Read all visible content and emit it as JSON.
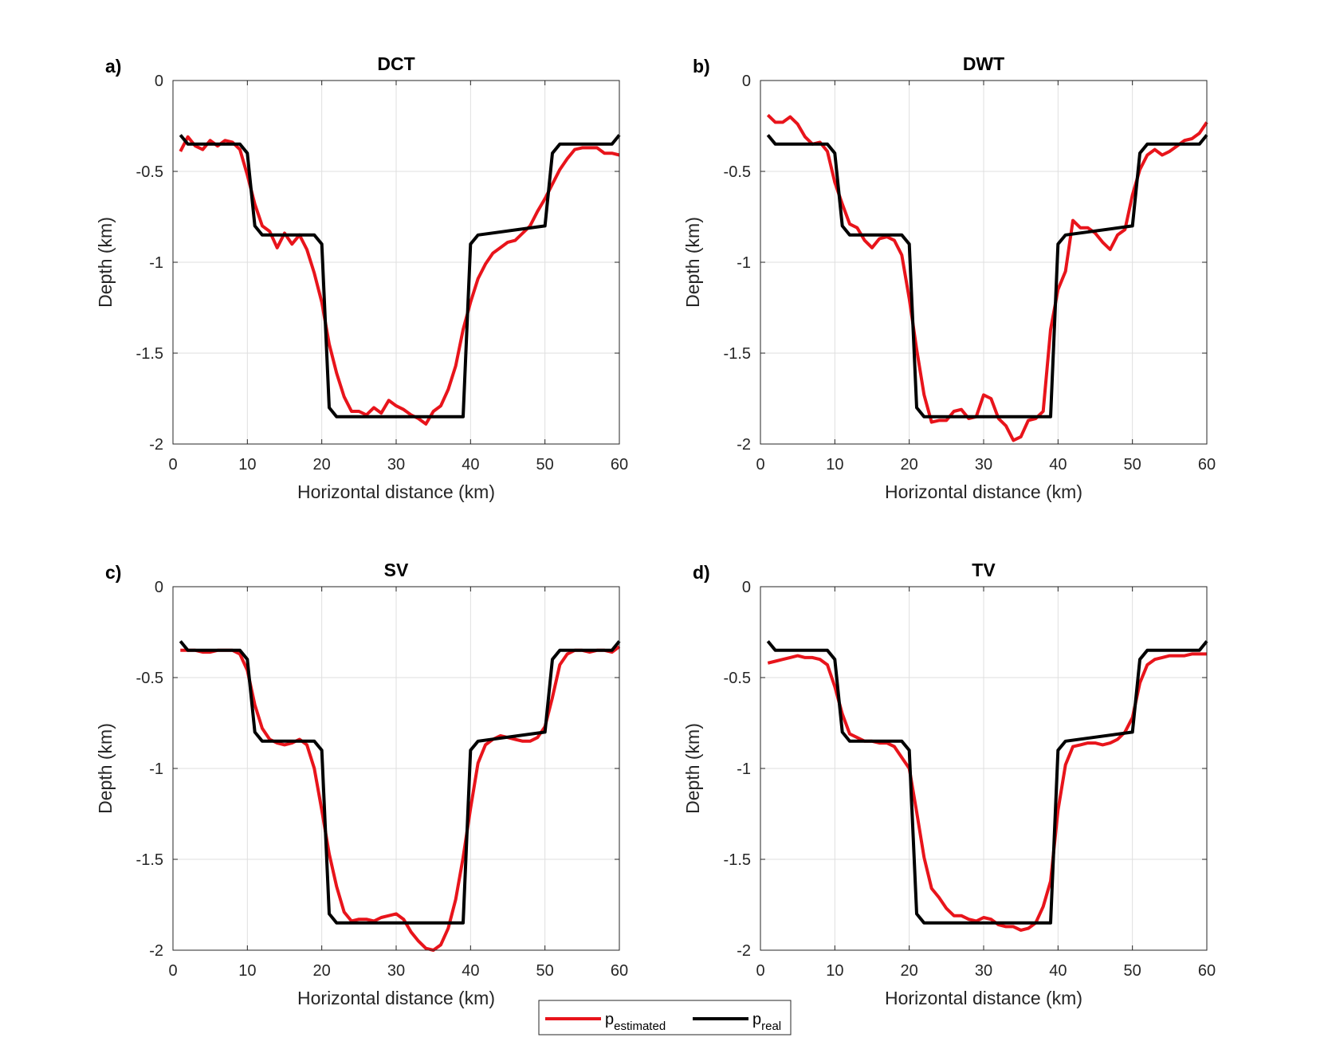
{
  "chart_data": [
    {
      "type": "line",
      "label": "a)",
      "title": "DCT",
      "xlabel": "Horizontal distance (km)",
      "ylabel": "Depth (km)",
      "xlim": [
        0,
        60
      ],
      "ylim": [
        -2,
        0
      ],
      "xticks": [
        0,
        10,
        20,
        30,
        40,
        50,
        60
      ],
      "yticks": [
        0,
        -0.5,
        -1,
        -1.5,
        -2
      ],
      "grid": true,
      "series": [
        {
          "name": "p_estimated",
          "color": "#e8141b",
          "x": [
            1,
            2,
            3,
            4,
            5,
            6,
            7,
            8,
            9,
            10,
            11,
            12,
            13,
            14,
            15,
            16,
            17,
            18,
            19,
            20,
            21,
            22,
            23,
            24,
            25,
            26,
            27,
            28,
            29,
            30,
            31,
            32,
            33,
            34,
            35,
            36,
            37,
            38,
            39,
            40,
            41,
            42,
            43,
            44,
            45,
            46,
            47,
            48,
            49,
            50,
            51,
            52,
            53,
            54,
            55,
            56,
            57,
            58,
            59,
            60
          ],
          "y": [
            -0.39,
            -0.31,
            -0.36,
            -0.38,
            -0.33,
            -0.36,
            -0.33,
            -0.34,
            -0.38,
            -0.52,
            -0.68,
            -0.8,
            -0.83,
            -0.92,
            -0.84,
            -0.9,
            -0.85,
            -0.93,
            -1.06,
            -1.22,
            -1.45,
            -1.61,
            -1.74,
            -1.82,
            -1.82,
            -1.84,
            -1.8,
            -1.83,
            -1.76,
            -1.79,
            -1.81,
            -1.84,
            -1.86,
            -1.89,
            -1.82,
            -1.79,
            -1.7,
            -1.57,
            -1.37,
            -1.22,
            -1.09,
            -1.01,
            -0.95,
            -0.92,
            -0.89,
            -0.88,
            -0.84,
            -0.8,
            -0.72,
            -0.65,
            -0.57,
            -0.49,
            -0.43,
            -0.38,
            -0.37,
            -0.37,
            -0.37,
            -0.4,
            -0.4,
            -0.41
          ]
        },
        {
          "name": "p_real",
          "color": "#000000",
          "x": [
            1,
            2,
            9,
            10,
            11,
            12,
            19,
            20,
            21,
            22,
            39,
            40,
            41,
            50,
            51,
            52,
            59,
            60
          ],
          "y": [
            -0.3,
            -0.35,
            -0.35,
            -0.4,
            -0.8,
            -0.85,
            -0.85,
            -0.9,
            -1.8,
            -1.85,
            -1.85,
            -0.9,
            -0.85,
            -0.8,
            -0.4,
            -0.35,
            -0.35,
            -0.3
          ]
        }
      ]
    },
    {
      "type": "line",
      "label": "b)",
      "title": "DWT",
      "xlabel": "Horizontal distance (km)",
      "ylabel": "Depth (km)",
      "xlim": [
        0,
        60
      ],
      "ylim": [
        -2,
        0
      ],
      "xticks": [
        0,
        10,
        20,
        30,
        40,
        50,
        60
      ],
      "yticks": [
        0,
        -0.5,
        -1,
        -1.5,
        -2
      ],
      "grid": true,
      "series": [
        {
          "name": "p_estimated",
          "color": "#e8141b",
          "x": [
            1,
            2,
            3,
            4,
            5,
            6,
            7,
            8,
            9,
            10,
            11,
            12,
            13,
            14,
            15,
            16,
            17,
            18,
            19,
            20,
            21,
            22,
            23,
            24,
            25,
            26,
            27,
            28,
            29,
            30,
            31,
            32,
            33,
            34,
            35,
            36,
            37,
            38,
            39,
            40,
            41,
            42,
            43,
            44,
            45,
            46,
            47,
            48,
            49,
            50,
            51,
            52,
            53,
            54,
            55,
            56,
            57,
            58,
            59,
            60
          ],
          "y": [
            -0.19,
            -0.23,
            -0.23,
            -0.2,
            -0.24,
            -0.31,
            -0.35,
            -0.34,
            -0.39,
            -0.56,
            -0.68,
            -0.79,
            -0.81,
            -0.88,
            -0.92,
            -0.87,
            -0.86,
            -0.88,
            -0.96,
            -1.2,
            -1.48,
            -1.73,
            -1.88,
            -1.87,
            -1.87,
            -1.82,
            -1.81,
            -1.86,
            -1.85,
            -1.73,
            -1.75,
            -1.86,
            -1.9,
            -1.98,
            -1.96,
            -1.87,
            -1.86,
            -1.82,
            -1.37,
            -1.15,
            -1.05,
            -0.77,
            -0.81,
            -0.81,
            -0.84,
            -0.89,
            -0.93,
            -0.85,
            -0.82,
            -0.63,
            -0.49,
            -0.41,
            -0.38,
            -0.41,
            -0.39,
            -0.36,
            -0.33,
            -0.32,
            -0.29,
            -0.23
          ]
        },
        {
          "name": "p_real",
          "color": "#000000",
          "x": [
            1,
            2,
            9,
            10,
            11,
            12,
            19,
            20,
            21,
            22,
            39,
            40,
            41,
            50,
            51,
            52,
            59,
            60
          ],
          "y": [
            -0.3,
            -0.35,
            -0.35,
            -0.4,
            -0.8,
            -0.85,
            -0.85,
            -0.9,
            -1.8,
            -1.85,
            -1.85,
            -0.9,
            -0.85,
            -0.8,
            -0.4,
            -0.35,
            -0.35,
            -0.3
          ]
        }
      ]
    },
    {
      "type": "line",
      "label": "c)",
      "title": "SV",
      "xlabel": "Horizontal distance (km)",
      "ylabel": "Depth (km)",
      "xlim": [
        0,
        60
      ],
      "ylim": [
        -2,
        0
      ],
      "xticks": [
        0,
        10,
        20,
        30,
        40,
        50,
        60
      ],
      "yticks": [
        0,
        -0.5,
        -1,
        -1.5,
        -2
      ],
      "grid": true,
      "series": [
        {
          "name": "p_estimated",
          "color": "#e8141b",
          "x": [
            1,
            2,
            3,
            4,
            5,
            6,
            7,
            8,
            9,
            10,
            11,
            12,
            13,
            14,
            15,
            16,
            17,
            18,
            19,
            20,
            21,
            22,
            23,
            24,
            25,
            26,
            27,
            28,
            29,
            30,
            31,
            32,
            33,
            34,
            35,
            36,
            37,
            38,
            39,
            40,
            41,
            42,
            43,
            44,
            45,
            46,
            47,
            48,
            49,
            50,
            51,
            52,
            53,
            54,
            55,
            56,
            57,
            58,
            59,
            60
          ],
          "y": [
            -0.35,
            -0.35,
            -0.35,
            -0.36,
            -0.36,
            -0.35,
            -0.35,
            -0.35,
            -0.37,
            -0.46,
            -0.65,
            -0.78,
            -0.84,
            -0.86,
            -0.87,
            -0.86,
            -0.84,
            -0.87,
            -1.0,
            -1.23,
            -1.47,
            -1.65,
            -1.79,
            -1.84,
            -1.83,
            -1.83,
            -1.84,
            -1.82,
            -1.81,
            -1.8,
            -1.83,
            -1.9,
            -1.95,
            -1.99,
            -2.0,
            -1.97,
            -1.88,
            -1.72,
            -1.49,
            -1.22,
            -0.97,
            -0.87,
            -0.84,
            -0.82,
            -0.83,
            -0.84,
            -0.85,
            -0.85,
            -0.83,
            -0.77,
            -0.61,
            -0.43,
            -0.37,
            -0.35,
            -0.35,
            -0.36,
            -0.35,
            -0.35,
            -0.36,
            -0.33
          ]
        },
        {
          "name": "p_real",
          "color": "#000000",
          "x": [
            1,
            2,
            9,
            10,
            11,
            12,
            19,
            20,
            21,
            22,
            39,
            40,
            41,
            50,
            51,
            52,
            59,
            60
          ],
          "y": [
            -0.3,
            -0.35,
            -0.35,
            -0.4,
            -0.8,
            -0.85,
            -0.85,
            -0.9,
            -1.8,
            -1.85,
            -1.85,
            -0.9,
            -0.85,
            -0.8,
            -0.4,
            -0.35,
            -0.35,
            -0.3
          ]
        }
      ]
    },
    {
      "type": "line",
      "label": "d)",
      "title": "TV",
      "xlabel": "Horizontal distance (km)",
      "ylabel": "Depth (km)",
      "xlim": [
        0,
        60
      ],
      "ylim": [
        -2,
        0
      ],
      "xticks": [
        0,
        10,
        20,
        30,
        40,
        50,
        60
      ],
      "yticks": [
        0,
        -0.5,
        -1,
        -1.5,
        -2
      ],
      "grid": true,
      "series": [
        {
          "name": "p_estimated",
          "color": "#e8141b",
          "x": [
            1,
            2,
            3,
            4,
            5,
            6,
            7,
            8,
            9,
            10,
            11,
            12,
            13,
            14,
            15,
            16,
            17,
            18,
            19,
            20,
            21,
            22,
            23,
            24,
            25,
            26,
            27,
            28,
            29,
            30,
            31,
            32,
            33,
            34,
            35,
            36,
            37,
            38,
            39,
            40,
            41,
            42,
            43,
            44,
            45,
            46,
            47,
            48,
            49,
            50,
            51,
            52,
            53,
            54,
            55,
            56,
            57,
            58,
            59,
            60
          ],
          "y": [
            -0.42,
            -0.41,
            -0.4,
            -0.39,
            -0.38,
            -0.39,
            -0.39,
            -0.4,
            -0.43,
            -0.55,
            -0.7,
            -0.81,
            -0.83,
            -0.85,
            -0.85,
            -0.86,
            -0.86,
            -0.88,
            -0.94,
            -1.0,
            -1.24,
            -1.49,
            -1.66,
            -1.71,
            -1.77,
            -1.81,
            -1.81,
            -1.83,
            -1.84,
            -1.82,
            -1.83,
            -1.86,
            -1.87,
            -1.87,
            -1.89,
            -1.88,
            -1.85,
            -1.76,
            -1.62,
            -1.23,
            -0.98,
            -0.88,
            -0.87,
            -0.86,
            -0.86,
            -0.87,
            -0.86,
            -0.84,
            -0.8,
            -0.72,
            -0.53,
            -0.43,
            -0.4,
            -0.39,
            -0.38,
            -0.38,
            -0.38,
            -0.37,
            -0.37,
            -0.37
          ]
        },
        {
          "name": "p_real",
          "color": "#000000",
          "x": [
            1,
            2,
            9,
            10,
            11,
            12,
            19,
            20,
            21,
            22,
            39,
            40,
            41,
            50,
            51,
            52,
            59,
            60
          ],
          "y": [
            -0.3,
            -0.35,
            -0.35,
            -0.4,
            -0.8,
            -0.85,
            -0.85,
            -0.9,
            -1.8,
            -1.85,
            -1.85,
            -0.9,
            -0.85,
            -0.8,
            -0.4,
            -0.35,
            -0.35,
            -0.3
          ]
        }
      ]
    }
  ],
  "legend": {
    "position": "bottom-center",
    "entries": [
      {
        "main": "p",
        "sub": "estimated",
        "color": "#e8141b"
      },
      {
        "main": "p",
        "sub": "real",
        "color": "#000000"
      }
    ]
  }
}
